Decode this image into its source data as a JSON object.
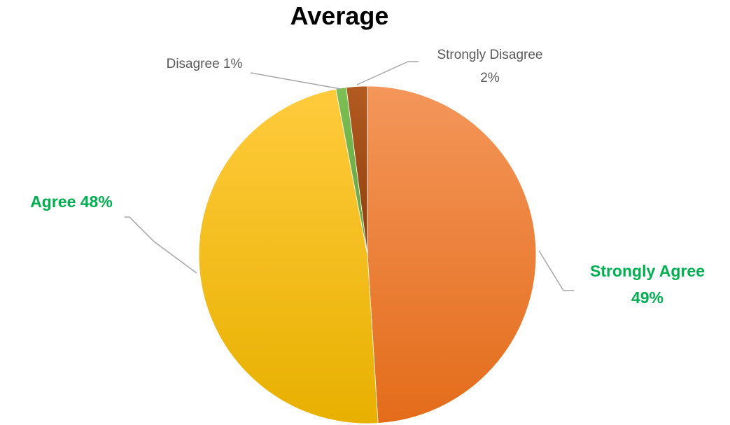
{
  "chart_data": {
    "type": "pie",
    "title": "Average",
    "start_angle_deg": 0,
    "direction": "clockwise",
    "slices": [
      {
        "name": "Strongly Agree",
        "value": 49,
        "label_line1": "Strongly Agree",
        "label_line2": "49%",
        "color": "#ED7D31",
        "label_color": "#00B050"
      },
      {
        "name": "Agree",
        "value": 48,
        "label_line1": "Agree 48%",
        "label_line2": "",
        "color": "#FFC000",
        "label_color": "#00B050"
      },
      {
        "name": "Disagree",
        "value": 1,
        "label_line1": "Disagree 1%",
        "label_line2": "",
        "color": "#70AD47",
        "label_color": "#595959"
      },
      {
        "name": "Strongly Disagree",
        "value": 2,
        "label_line1": "Strongly Disagree",
        "label_line2": "2%",
        "color": "#9E480E",
        "label_color": "#595959"
      }
    ]
  }
}
